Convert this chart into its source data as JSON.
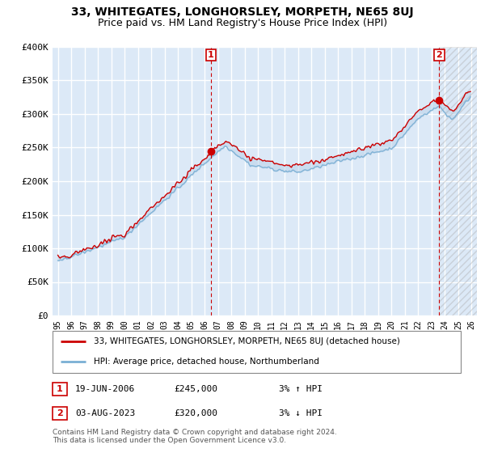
{
  "title": "33, WHITEGATES, LONGHORSLEY, MORPETH, NE65 8UJ",
  "subtitle": "Price paid vs. HM Land Registry's House Price Index (HPI)",
  "ylim": [
    0,
    400000
  ],
  "yticks": [
    0,
    50000,
    100000,
    150000,
    200000,
    250000,
    300000,
    350000,
    400000
  ],
  "ytick_labels": [
    "£0",
    "£50K",
    "£100K",
    "£150K",
    "£200K",
    "£250K",
    "£300K",
    "£350K",
    "£400K"
  ],
  "background_color": "#ffffff",
  "plot_bg_color": "#dce9f7",
  "grid_color": "#ffffff",
  "line1_color": "#cc0000",
  "line2_color": "#7aafd4",
  "fill_color": "#dce9f7",
  "marker1_color": "#cc0000",
  "sale1_x": 2006.46,
  "sale1_price": 245000,
  "sale2_x": 2023.58,
  "sale2_price": 320000,
  "legend_line1": "33, WHITEGATES, LONGHORSLEY, MORPETH, NE65 8UJ (detached house)",
  "legend_line2": "HPI: Average price, detached house, Northumberland",
  "annotation1_date": "19-JUN-2006",
  "annotation1_price": "£245,000",
  "annotation1_hpi": "3% ↑ HPI",
  "annotation2_date": "03-AUG-2023",
  "annotation2_price": "£320,000",
  "annotation2_hpi": "3% ↓ HPI",
  "footnote": "Contains HM Land Registry data © Crown copyright and database right 2024.\nThis data is licensed under the Open Government Licence v3.0.",
  "title_fontsize": 10,
  "subtitle_fontsize": 9,
  "tick_fontsize": 8,
  "xlim_left": 1994.6,
  "xlim_right": 2026.4
}
